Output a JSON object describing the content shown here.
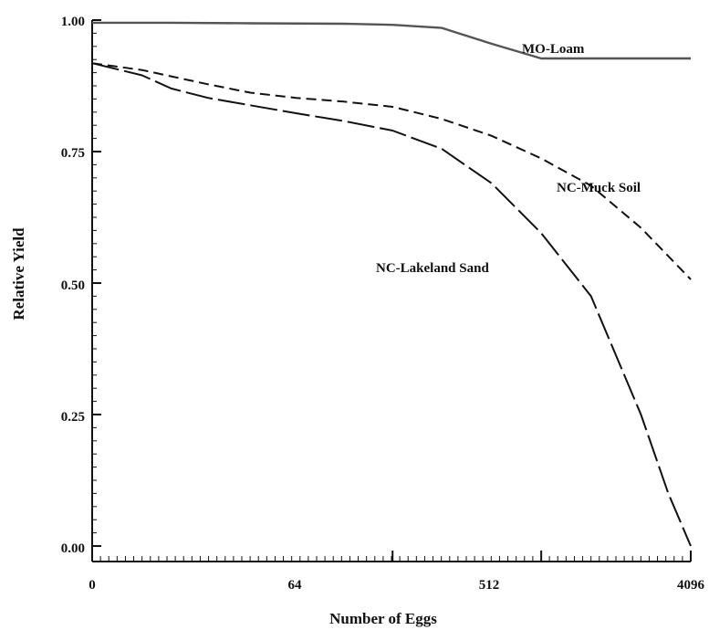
{
  "chart_data": {
    "type": "line",
    "xlabel": "Number of Eggs",
    "ylabel": "Relative Yield",
    "xscale": "log2",
    "x_tick_labels": [
      "0",
      "64",
      "512",
      "4096"
    ],
    "y_tick_labels": [
      "1.00",
      "0.75",
      "0.50",
      "0.25",
      "0.00"
    ],
    "ylim": [
      0,
      1
    ],
    "grid": false,
    "legend": "inline labels",
    "series": [
      {
        "name": "MO-Loam",
        "style": "solid",
        "color": "#555555",
        "points": [
          [
            0,
            0.995
          ],
          [
            2,
            0.995
          ],
          [
            8,
            0.994
          ],
          [
            32,
            0.993
          ],
          [
            64,
            0.991
          ],
          [
            128,
            0.985
          ],
          [
            256,
            0.955
          ],
          [
            512,
            0.927
          ],
          [
            1024,
            0.927
          ],
          [
            2048,
            0.927
          ],
          [
            4096,
            0.927
          ]
        ]
      },
      {
        "name": "NC-Muck Soil",
        "style": "short-dash",
        "color": "#111111",
        "points": [
          [
            0,
            0.918
          ],
          [
            1,
            0.905
          ],
          [
            2,
            0.893
          ],
          [
            4,
            0.878
          ],
          [
            8,
            0.862
          ],
          [
            16,
            0.852
          ],
          [
            32,
            0.845
          ],
          [
            64,
            0.835
          ],
          [
            128,
            0.812
          ],
          [
            256,
            0.78
          ],
          [
            512,
            0.737
          ],
          [
            1024,
            0.685
          ],
          [
            2048,
            0.605
          ],
          [
            4096,
            0.507
          ]
        ]
      },
      {
        "name": "NC-Lakeland Sand",
        "style": "long-dash",
        "color": "#111111",
        "points": [
          [
            0,
            0.918
          ],
          [
            1,
            0.895
          ],
          [
            2,
            0.87
          ],
          [
            4,
            0.852
          ],
          [
            8,
            0.838
          ],
          [
            16,
            0.823
          ],
          [
            32,
            0.808
          ],
          [
            64,
            0.79
          ],
          [
            128,
            0.755
          ],
          [
            256,
            0.69
          ],
          [
            512,
            0.595
          ],
          [
            1024,
            0.475
          ],
          [
            2048,
            0.25
          ],
          [
            3000,
            0.1
          ],
          [
            4096,
            0.0
          ]
        ]
      }
    ]
  }
}
